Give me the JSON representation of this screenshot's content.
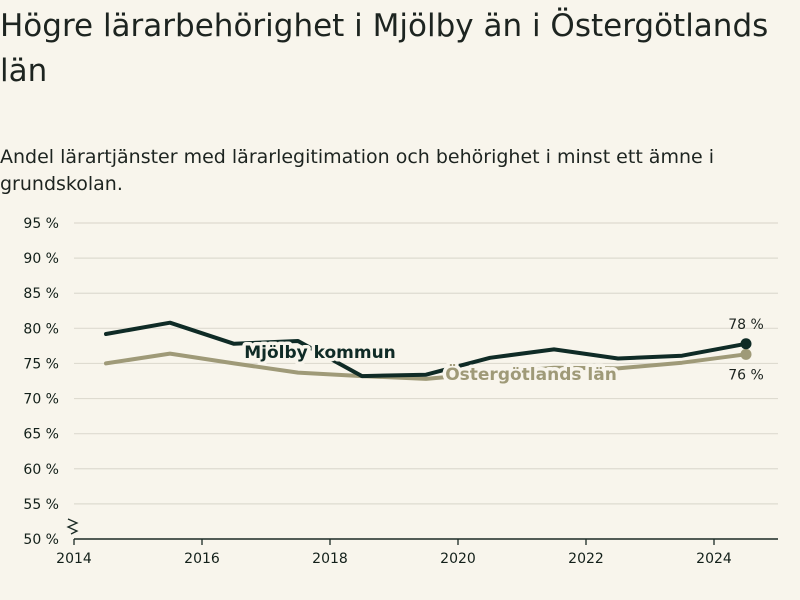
{
  "header": {
    "title": "Högre lärarbehörighet i Mjölby än i Östergötlands län",
    "subtitle": "Andel lärartjänster med lärarlegitimation och behörighet i minst ett ämne i grundskolan."
  },
  "chart_data": {
    "type": "line",
    "title": "Högre lärarbehörighet i Mjölby än i Östergötlands län",
    "subtitle": "Andel lärartjänster med lärarlegitimation och behörighet i minst ett ämne i grundskolan.",
    "xlabel": "",
    "ylabel": "",
    "x": [
      2014.5,
      2015.5,
      2016.5,
      2017.5,
      2018.5,
      2019.5,
      2020.5,
      2021.5,
      2022.5,
      2023.5,
      2024.5
    ],
    "xlim": [
      2014,
      2025
    ],
    "ylim": [
      50,
      95
    ],
    "x_ticks": [
      {
        "value": 2014,
        "label": "2014"
      },
      {
        "value": 2016,
        "label": "2016"
      },
      {
        "value": 2018,
        "label": "2018"
      },
      {
        "value": 2020,
        "label": "2020"
      },
      {
        "value": 2022,
        "label": "2022"
      },
      {
        "value": 2024,
        "label": "2024"
      }
    ],
    "y_ticks": [
      {
        "value": 95,
        "label": "95 %"
      },
      {
        "value": 90,
        "label": "90 %"
      },
      {
        "value": 85,
        "label": "85 %"
      },
      {
        "value": 80,
        "label": "80 %"
      },
      {
        "value": 75,
        "label": "75 %"
      },
      {
        "value": 70,
        "label": "70 %"
      },
      {
        "value": 65,
        "label": "65 %"
      },
      {
        "value": 60,
        "label": "60 %"
      },
      {
        "value": 55,
        "label": "55 %"
      },
      {
        "value": 50,
        "label": "50 %"
      }
    ],
    "grid": true,
    "axis_break": true,
    "series": [
      {
        "name": "Mjölby kommun",
        "color": "#0f2b26",
        "values": [
          79.2,
          80.8,
          77.8,
          78.2,
          73.2,
          73.4,
          75.8,
          77.0,
          75.7,
          76.1,
          77.8
        ],
        "end_label": "78 %"
      },
      {
        "name": "Östergötlands län",
        "color": "#9f9a78",
        "values": [
          75.0,
          76.4,
          75.0,
          73.7,
          73.2,
          72.8,
          73.6,
          74.4,
          74.3,
          75.1,
          76.3
        ],
        "end_label": "76 %"
      }
    ]
  }
}
